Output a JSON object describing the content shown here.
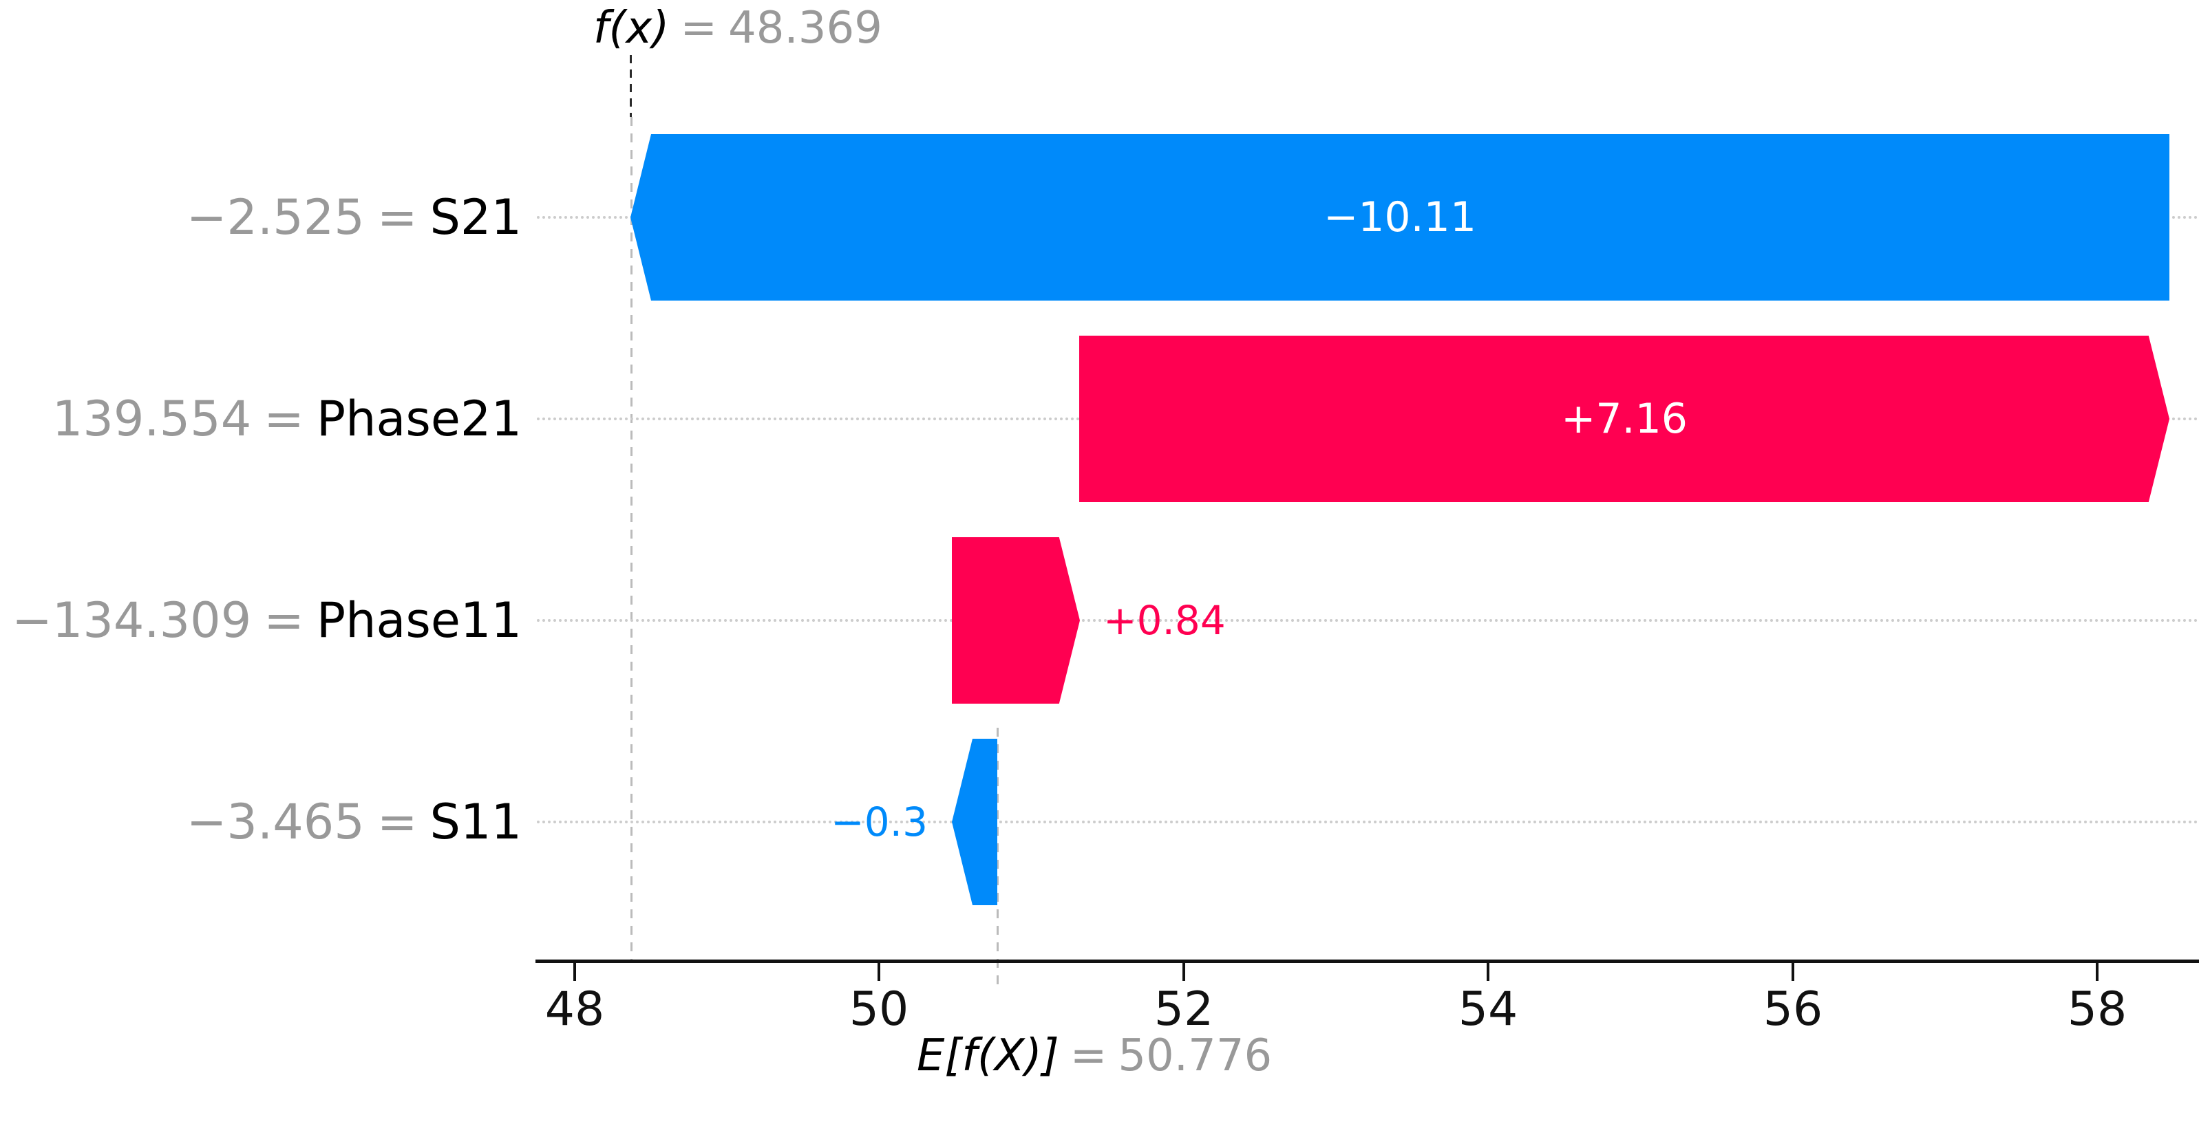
{
  "chart_data": {
    "type": "bar",
    "subtype": "shap-waterfall",
    "title": "",
    "xlabel": "",
    "ylabel": "",
    "grid": "dotted horizontal row guides",
    "legend": "none",
    "background": "#ffffff",
    "equals": "=",
    "fx_annotation": {
      "label": "f(x)",
      "value": "48.369",
      "numeric": 48.369
    },
    "ef_annotation": {
      "label": "E[f(X)]",
      "value": "50.776",
      "numeric": 50.776
    },
    "x_ticks": [
      "48",
      "50",
      "52",
      "54",
      "56",
      "58"
    ],
    "x_tick_values": [
      48,
      50,
      52,
      54,
      56,
      58
    ],
    "xlim": [
      47.75,
      58.67
    ],
    "rows": [
      {
        "feature": "S21",
        "feature_value": "−2.525",
        "shap": -10.11,
        "label": "−10.11",
        "label_placement": "inside",
        "start": 58.476,
        "end": 48.366
      },
      {
        "feature": "Phase21",
        "feature_value": "139.554",
        "shap": 7.16,
        "label": "+7.16",
        "label_placement": "inside",
        "start": 51.316,
        "end": 58.476
      },
      {
        "feature": "Phase11",
        "feature_value": "−134.309",
        "shap": 0.84,
        "label": "+0.84",
        "label_placement": "outside",
        "start": 50.476,
        "end": 51.316
      },
      {
        "feature": "S11",
        "feature_value": "−3.465",
        "shap": -0.3,
        "label": "−0.3",
        "label_placement": "outside",
        "start": 50.776,
        "end": 50.476
      }
    ],
    "colors": {
      "positive": "#ff0051",
      "negative": "#008afa",
      "gray_text": "#999999",
      "dashed_guide": "#bbbbbb",
      "dotted_guide": "#cccccc",
      "axis": "#111111",
      "bar_label_inside": "#ffffff"
    }
  }
}
